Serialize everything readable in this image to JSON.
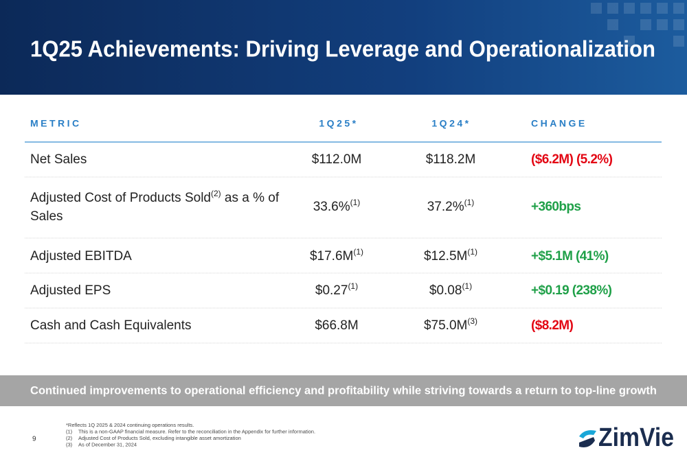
{
  "header": {
    "title": "1Q25 Achievements: Driving Leverage and Operationalization"
  },
  "table": {
    "columns": [
      "METRIC",
      "1Q25*",
      "1Q24*",
      "CHANGE"
    ],
    "rows": [
      [
        {
          "text": "Net Sales"
        },
        {
          "text": "$112.0M"
        },
        {
          "text": "$118.2M"
        },
        {
          "text": "($6.2M) (5.2%)",
          "color": "#e30613"
        }
      ],
      [
        {
          "text": "Adjusted Cost of Products Sold",
          "sup": "(2)",
          "rest": " as a % of",
          "line2": "Sales"
        },
        {
          "text": "33.6%",
          "sup": "(1)"
        },
        {
          "text": "37.2%",
          "sup": "(1)"
        },
        {
          "text": "+360bps",
          "color": "#1fa048"
        }
      ],
      [
        {
          "text": "Adjusted EBITDA"
        },
        {
          "text": "$17.6M",
          "sup": "(1)"
        },
        {
          "text": "$12.5M",
          "sup": "(1)"
        },
        {
          "text": "+$5.1M (41%)",
          "color": "#1fa048"
        }
      ],
      [
        {
          "text": "Adjusted EPS"
        },
        {
          "text": "$0.27",
          "sup": "(1)"
        },
        {
          "text": "$0.08",
          "sup": "(1)"
        },
        {
          "text": "+$0.19 (238%)",
          "color": "#1fa048"
        }
      ],
      [
        {
          "text": "Cash and Cash Equivalents"
        },
        {
          "text": "$66.8M"
        },
        {
          "text": "$75.0M",
          "sup": "(3)"
        },
        {
          "text": "($8.2M)",
          "color": "#e30613"
        }
      ]
    ]
  },
  "banner": "Continued improvements to operational efficiency and profitability while striving towards a return to top-line growth",
  "footnotes": [
    {
      "text": "*Reflects 1Q 2025 & 2024 continuing operations results."
    },
    {
      "mark": "(1)",
      "text": "This is a non-GAAP financial measure. Refer to the reconciliation in the Appendix for further information."
    },
    {
      "mark": "(2)",
      "text": "Adjusted Cost of Products Sold, excluding intangible asset amortization"
    },
    {
      "mark": "(3)",
      "text": "As of December 31, 2024"
    }
  ],
  "page_number": "9",
  "logo": "ZimVie"
}
